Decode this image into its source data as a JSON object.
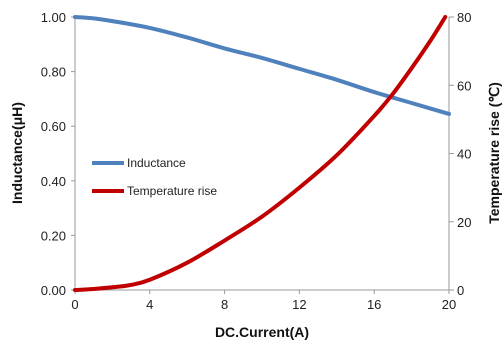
{
  "chart_data": {
    "type": "line",
    "xlabel": "DC.Current(A)",
    "ylabel_left": "Inductance(μH)",
    "ylabel_right": "Temperature rise (℃)",
    "xlim": [
      0,
      20
    ],
    "xticks": [
      0,
      4,
      8,
      12,
      16,
      20
    ],
    "ylim_left": [
      0,
      1.0
    ],
    "yticks_left": [
      "0.00",
      "0.20",
      "0.40",
      "0.60",
      "0.80",
      "1.00"
    ],
    "ylim_right": [
      0,
      80
    ],
    "yticks_right": [
      "0",
      "20",
      "40",
      "60",
      "80"
    ],
    "grid": false,
    "legend_position": "middle-left",
    "series": [
      {
        "name": "Inductance",
        "axis": "left",
        "color": "#4f81bd",
        "x": [
          0,
          1,
          2,
          4,
          6,
          8,
          10,
          12,
          14,
          16,
          18,
          20
        ],
        "y": [
          1.0,
          0.995,
          0.985,
          0.96,
          0.925,
          0.885,
          0.85,
          0.81,
          0.77,
          0.725,
          0.685,
          0.645
        ]
      },
      {
        "name": "Temperature rise",
        "axis": "right",
        "color": "#c00000",
        "x": [
          0,
          1,
          2,
          3,
          4,
          6,
          8,
          10,
          12,
          14,
          16,
          17,
          18,
          19,
          19.8
        ],
        "y": [
          0,
          0.3,
          0.8,
          1.5,
          3,
          8,
          14.5,
          21.5,
          30,
          39.5,
          51,
          57.5,
          65,
          73,
          80
        ]
      }
    ]
  }
}
